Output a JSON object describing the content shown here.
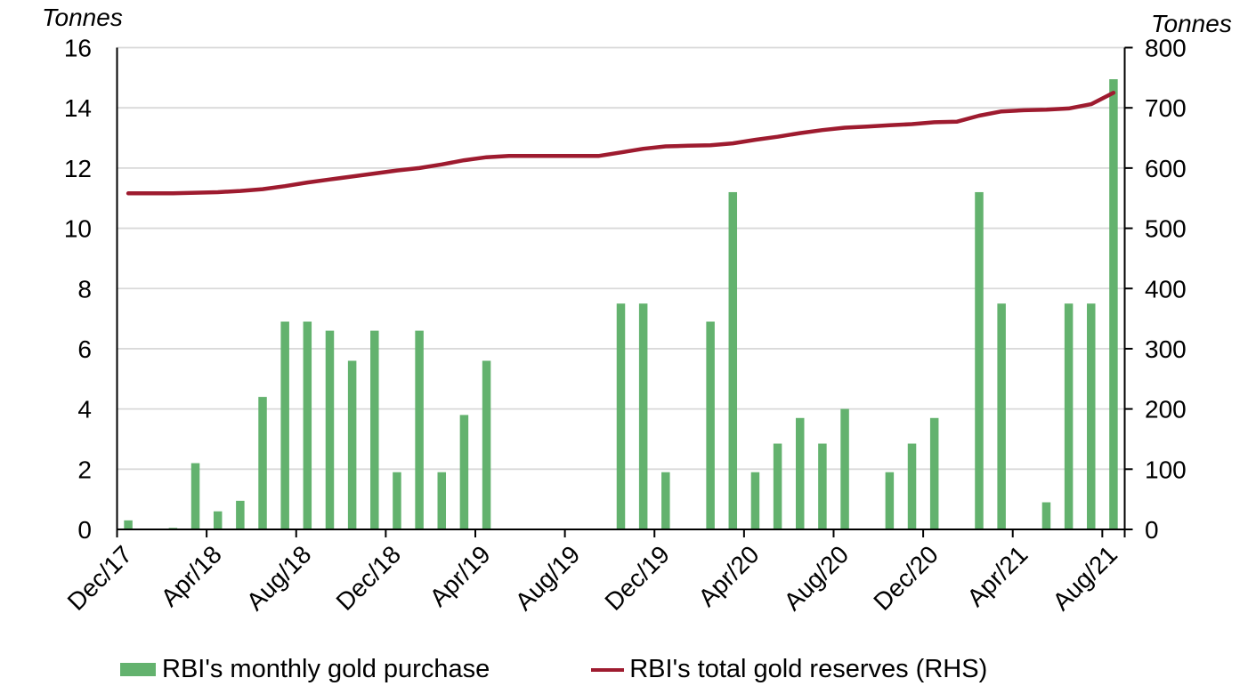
{
  "axis_titles": {
    "left": "Tonnes",
    "right": "Tonnes"
  },
  "legend": {
    "items": [
      {
        "label": "RBI's monthly gold purchase",
        "swatch": "bar",
        "color": "#63B26E"
      },
      {
        "label": "RBI's total gold reserves (RHS)",
        "swatch": "line",
        "color": "#9E1B2F"
      }
    ]
  },
  "chart_data": {
    "type": "combo_bar_line",
    "title": "",
    "categories": [
      "Dec/17",
      "Jan/18",
      "Feb/18",
      "Mar/18",
      "Apr/18",
      "May/18",
      "Jun/18",
      "Jul/18",
      "Aug/18",
      "Sep/18",
      "Oct/18",
      "Nov/18",
      "Dec/18",
      "Jan/19",
      "Feb/19",
      "Mar/19",
      "Apr/19",
      "May/19",
      "Jun/19",
      "Jul/19",
      "Aug/19",
      "Sep/19",
      "Oct/19",
      "Nov/19",
      "Dec/19",
      "Jan/20",
      "Feb/20",
      "Mar/20",
      "Apr/20",
      "May/20",
      "Jun/20",
      "Jul/20",
      "Aug/20",
      "Sep/20",
      "Oct/20",
      "Nov/20",
      "Dec/20",
      "Jan/21",
      "Feb/21",
      "Mar/21",
      "Apr/21",
      "May/21",
      "Jun/21",
      "Jul/21",
      "Aug/21"
    ],
    "series": [
      {
        "name": "RBI's monthly gold purchase",
        "type": "bar",
        "axis": "left",
        "color": "#63B26E",
        "values": [
          0.3,
          0,
          0.05,
          2.2,
          0.6,
          0.95,
          4.4,
          6.9,
          6.9,
          6.6,
          5.6,
          6.6,
          1.9,
          6.6,
          1.9,
          3.8,
          5.6,
          0,
          0,
          0,
          0,
          0,
          7.5,
          7.5,
          1.9,
          0,
          6.9,
          11.2,
          1.9,
          2.85,
          3.7,
          2.85,
          4.0,
          0,
          1.9,
          2.85,
          3.7,
          0,
          11.2,
          7.5,
          0,
          0.9,
          7.5,
          7.5,
          14.95
        ]
      },
      {
        "name": "RBI's total gold reserves (RHS)",
        "type": "line",
        "axis": "right",
        "color": "#9E1B2F",
        "values": [
          558,
          558,
          558,
          559,
          560,
          562,
          565,
          570,
          576,
          581,
          586,
          591,
          596,
          600,
          606,
          613,
          618,
          620,
          620,
          620,
          620,
          620,
          626,
          632,
          636,
          637,
          638,
          641,
          647,
          652,
          658,
          663,
          667,
          669,
          671,
          673,
          676,
          677,
          687,
          694,
          696,
          697,
          699,
          706,
          725
        ]
      }
    ],
    "left_axis": {
      "title": "Tonnes",
      "min": 0,
      "max": 16,
      "tick_step": 2,
      "ticks": [
        0,
        2,
        4,
        6,
        8,
        10,
        12,
        14,
        16
      ]
    },
    "right_axis": {
      "title": "Tonnes",
      "min": 0,
      "max": 800,
      "tick_step": 100,
      "ticks": [
        0,
        100,
        200,
        300,
        400,
        500,
        600,
        700,
        800
      ]
    },
    "x_axis": {
      "tick_label_every": 4,
      "label_rotation": -45,
      "visible_labels": [
        "Dec/17",
        "Apr/18",
        "Aug/18",
        "Dec/18",
        "Apr/19",
        "Aug/19",
        "Dec/19",
        "Apr/20",
        "Aug/20",
        "Dec/20",
        "Apr/21",
        "Aug/21"
      ]
    },
    "grid": "horizontal",
    "gridline_color": "#D9D9D9",
    "axis_color": "#000000",
    "legend_position": "bottom"
  }
}
